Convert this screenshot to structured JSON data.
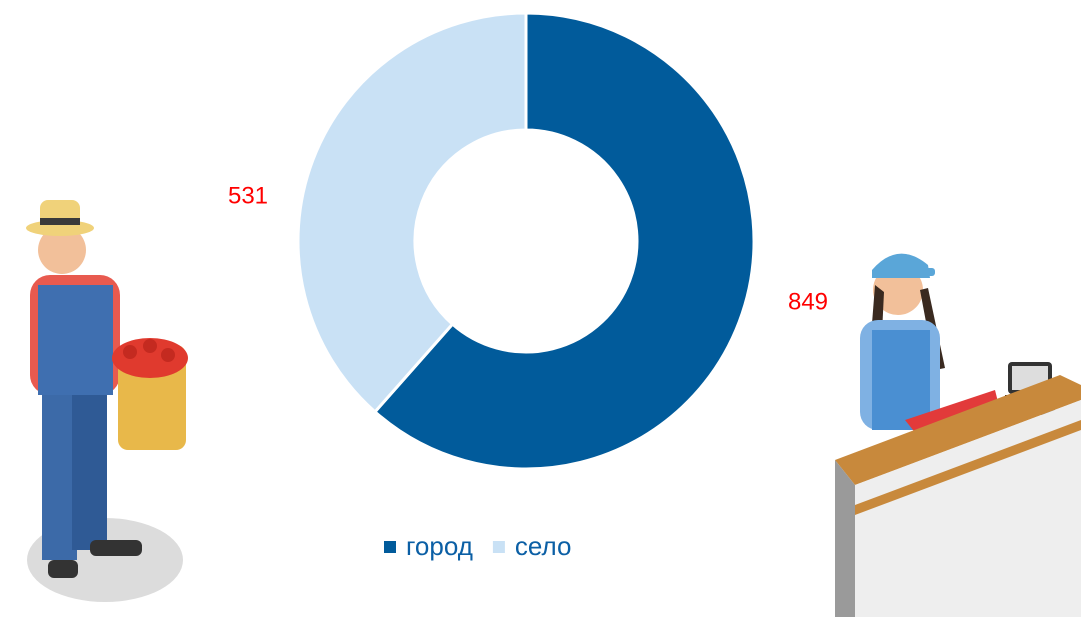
{
  "chart_data": {
    "type": "donut",
    "categories": [
      "город",
      "село"
    ],
    "values": [
      849,
      531
    ],
    "colors": [
      "#015b9b",
      "#c9e1f5"
    ],
    "label_color": "#ff0000"
  }
}
